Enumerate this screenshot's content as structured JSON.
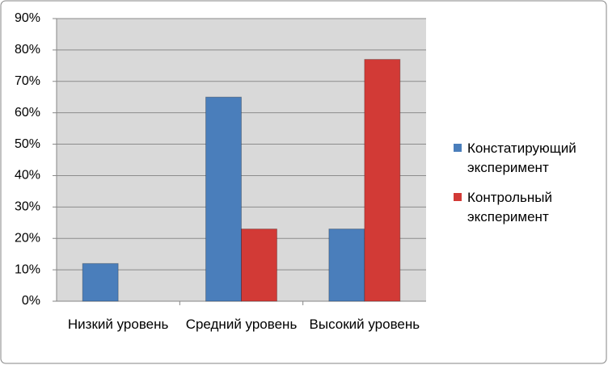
{
  "chart_data": {
    "type": "bar",
    "categories": [
      "Низкий уровень",
      "Средний уровень",
      "Высокий уровень"
    ],
    "series": [
      {
        "name": "Констатирующий эксперимент",
        "color": "#4a7ebb",
        "values": [
          12,
          65,
          23
        ]
      },
      {
        "name": "Контрольный эксперимент",
        "color": "#d23a36",
        "values": [
          0,
          23,
          77
        ]
      }
    ],
    "ylim": [
      0,
      90
    ],
    "yticks": [
      {
        "value": 0,
        "label": "0%"
      },
      {
        "value": 10,
        "label": "10%"
      },
      {
        "value": 20,
        "label": "20%"
      },
      {
        "value": 30,
        "label": "30%"
      },
      {
        "value": 40,
        "label": "40%"
      },
      {
        "value": 50,
        "label": "50%"
      },
      {
        "value": 60,
        "label": "60%"
      },
      {
        "value": 70,
        "label": "70%"
      },
      {
        "value": 80,
        "label": "80%"
      },
      {
        "value": 90,
        "label": "90%"
      }
    ],
    "grid": true,
    "legend": "right"
  }
}
